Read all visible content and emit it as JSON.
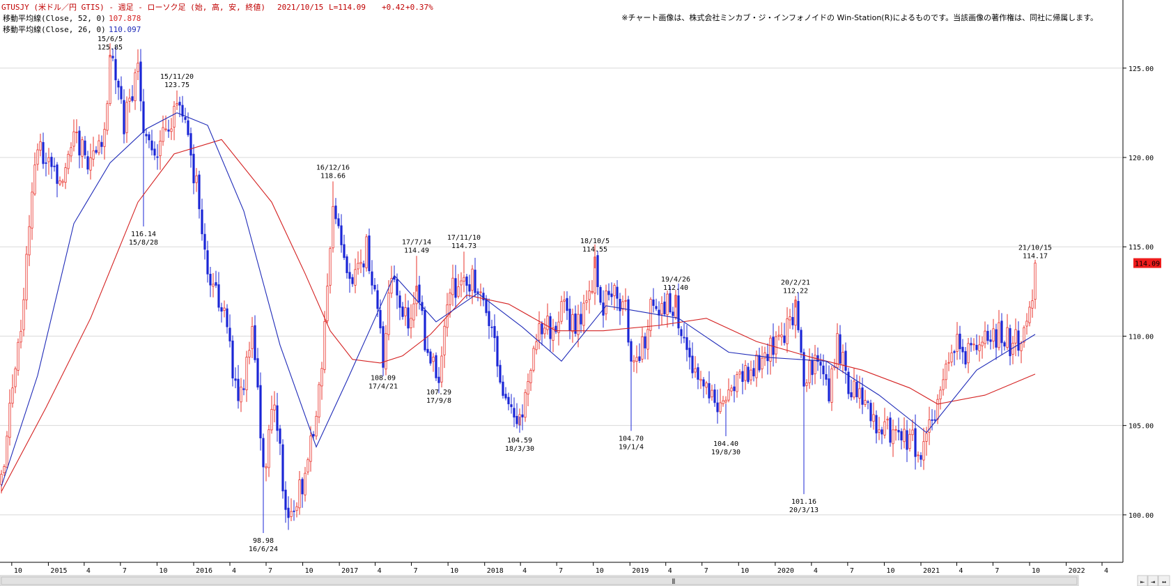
{
  "header": {
    "symbol_line": "GTUSJY (米ドル／円 GTIS) - 週足 - ローソク足 (始, 高, 安, 終値)",
    "date": "2021/10/15",
    "last": "L=114.09",
    "change": "+0.42",
    "change_pct": "+0.37%",
    "ma52_label": "移動平均線(Close, 52, 0)",
    "ma52_value": "107.878",
    "ma26_label": "移動平均線(Close, 26, 0)",
    "ma26_value": "110.097",
    "notice": "※チャート画像は、株式会社ミンカブ・ジ・インフォノイドの Win-Station(R)によるものです。当該画像の著作権は、同社に帰属します。"
  },
  "colors": {
    "up": "#e8302a",
    "down": "#1a26d6",
    "ma52": "#d42020",
    "ma26": "#1e2ab8",
    "header_text": "#c00000",
    "price_tag_bg": "#ee1c1c",
    "grid": "#d8d8d8"
  },
  "chart_data": {
    "type": "candlestick",
    "title": "GTUSJY (米ドル／円 GTIS) - 週足 - ローソク足 (始, 高, 安, 終値)",
    "x_start": "2014-09-05",
    "x_end": "2022-04-29",
    "ylim": [
      97.5,
      128.5
    ],
    "yticks": [
      100,
      105,
      110,
      115,
      120,
      125
    ],
    "ytick_labels": [
      "100.00",
      "105.00",
      "110.00",
      "115.00",
      "120.00",
      "125.00"
    ],
    "xticks": [
      {
        "label": "10",
        "date": "2014-10-01"
      },
      {
        "label": "2015",
        "date": "2015-01-01"
      },
      {
        "label": "4",
        "date": "2015-04-01"
      },
      {
        "label": "7",
        "date": "2015-07-01"
      },
      {
        "label": "10",
        "date": "2015-10-01"
      },
      {
        "label": "2016",
        "date": "2016-01-01"
      },
      {
        "label": "4",
        "date": "2016-04-01"
      },
      {
        "label": "7",
        "date": "2016-07-01"
      },
      {
        "label": "10",
        "date": "2016-10-01"
      },
      {
        "label": "2017",
        "date": "2017-01-01"
      },
      {
        "label": "4",
        "date": "2017-04-01"
      },
      {
        "label": "7",
        "date": "2017-07-01"
      },
      {
        "label": "10",
        "date": "2017-10-01"
      },
      {
        "label": "2018",
        "date": "2018-01-01"
      },
      {
        "label": "4",
        "date": "2018-04-01"
      },
      {
        "label": "7",
        "date": "2018-07-01"
      },
      {
        "label": "10",
        "date": "2018-10-01"
      },
      {
        "label": "2019",
        "date": "2019-01-01"
      },
      {
        "label": "4",
        "date": "2019-04-01"
      },
      {
        "label": "7",
        "date": "2019-07-01"
      },
      {
        "label": "10",
        "date": "2019-10-01"
      },
      {
        "label": "2020",
        "date": "2020-01-01"
      },
      {
        "label": "4",
        "date": "2020-04-01"
      },
      {
        "label": "7",
        "date": "2020-07-01"
      },
      {
        "label": "10",
        "date": "2020-10-01"
      },
      {
        "label": "2021",
        "date": "2021-01-01"
      },
      {
        "label": "4",
        "date": "2021-04-01"
      },
      {
        "label": "7",
        "date": "2021-07-01"
      },
      {
        "label": "10",
        "date": "2021-10-01"
      },
      {
        "label": "2022",
        "date": "2022-01-01"
      },
      {
        "label": "4",
        "date": "2022-04-01"
      }
    ],
    "price_path": [
      {
        "date": "2014-09-05",
        "close": 102.0
      },
      {
        "date": "2014-10-10",
        "close": 107.8
      },
      {
        "date": "2014-10-31",
        "close": 112.5
      },
      {
        "date": "2014-12-05",
        "close": 121.0
      },
      {
        "date": "2015-01-09",
        "close": 119.0
      },
      {
        "date": "2015-02-06",
        "close": 118.0
      },
      {
        "date": "2015-03-06",
        "close": 120.8
      },
      {
        "date": "2015-04-10",
        "close": 120.0
      },
      {
        "date": "2015-05-22",
        "close": 121.5
      },
      {
        "date": "2015-06-05",
        "close": 125.6
      },
      {
        "date": "2015-07-10",
        "close": 122.0
      },
      {
        "date": "2015-08-14",
        "close": 124.5
      },
      {
        "date": "2015-08-28",
        "close": 121.2
      },
      {
        "date": "2015-09-25",
        "close": 120.5
      },
      {
        "date": "2015-10-23",
        "close": 121.5
      },
      {
        "date": "2015-11-20",
        "close": 123.0
      },
      {
        "date": "2015-12-25",
        "close": 120.3
      },
      {
        "date": "2016-01-15",
        "close": 117.5
      },
      {
        "date": "2016-02-12",
        "close": 113.2
      },
      {
        "date": "2016-03-18",
        "close": 111.5
      },
      {
        "date": "2016-04-08",
        "close": 108.2
      },
      {
        "date": "2016-04-29",
        "close": 106.5
      },
      {
        "date": "2016-05-27",
        "close": 110.5
      },
      {
        "date": "2016-06-24",
        "close": 102.5
      },
      {
        "date": "2016-07-22",
        "close": 106.0
      },
      {
        "date": "2016-08-19",
        "close": 100.5
      },
      {
        "date": "2016-09-30",
        "close": 101.3
      },
      {
        "date": "2016-10-21",
        "close": 103.8
      },
      {
        "date": "2016-11-11",
        "close": 106.7
      },
      {
        "date": "2016-12-16",
        "close": 117.9
      },
      {
        "date": "2017-01-13",
        "close": 114.5
      },
      {
        "date": "2017-02-10",
        "close": 113.2
      },
      {
        "date": "2017-03-10",
        "close": 114.8
      },
      {
        "date": "2017-04-21",
        "close": 109.0
      },
      {
        "date": "2017-05-12",
        "close": 113.3
      },
      {
        "date": "2017-06-16",
        "close": 110.8
      },
      {
        "date": "2017-07-14",
        "close": 112.5
      },
      {
        "date": "2017-08-11",
        "close": 109.2
      },
      {
        "date": "2017-09-08",
        "close": 107.8
      },
      {
        "date": "2017-10-06",
        "close": 112.6
      },
      {
        "date": "2017-11-10",
        "close": 113.5
      },
      {
        "date": "2017-12-15",
        "close": 112.6
      },
      {
        "date": "2018-01-12",
        "close": 111.0
      },
      {
        "date": "2018-02-16",
        "close": 106.3
      },
      {
        "date": "2018-03-23",
        "close": 104.8
      },
      {
        "date": "2018-04-20",
        "close": 107.6
      },
      {
        "date": "2018-05-18",
        "close": 110.8
      },
      {
        "date": "2018-06-15",
        "close": 110.6
      },
      {
        "date": "2018-07-20",
        "close": 111.4
      },
      {
        "date": "2018-08-17",
        "close": 110.5
      },
      {
        "date": "2018-09-21",
        "close": 112.6
      },
      {
        "date": "2018-10-05",
        "close": 113.8
      },
      {
        "date": "2018-10-26",
        "close": 111.9
      },
      {
        "date": "2018-11-16",
        "close": 112.8
      },
      {
        "date": "2018-12-21",
        "close": 111.2
      },
      {
        "date": "2019-01-04",
        "close": 108.5
      },
      {
        "date": "2019-02-01",
        "close": 109.5
      },
      {
        "date": "2019-03-01",
        "close": 111.9
      },
      {
        "date": "2019-04-26",
        "close": 111.6
      },
      {
        "date": "2019-05-24",
        "close": 109.3
      },
      {
        "date": "2019-06-21",
        "close": 107.3
      },
      {
        "date": "2019-08-02",
        "close": 106.6
      },
      {
        "date": "2019-08-30",
        "close": 106.2
      },
      {
        "date": "2019-09-27",
        "close": 107.9
      },
      {
        "date": "2019-11-01",
        "close": 108.3
      },
      {
        "date": "2019-12-13",
        "close": 109.4
      },
      {
        "date": "2020-01-10",
        "close": 109.5
      },
      {
        "date": "2020-02-21",
        "close": 111.6
      },
      {
        "date": "2020-03-13",
        "close": 107.8
      },
      {
        "date": "2020-04-10",
        "close": 108.4
      },
      {
        "date": "2020-05-15",
        "close": 107.1
      },
      {
        "date": "2020-06-05",
        "close": 109.6
      },
      {
        "date": "2020-07-03",
        "close": 107.5
      },
      {
        "date": "2020-08-14",
        "close": 106.6
      },
      {
        "date": "2020-09-18",
        "close": 104.6
      },
      {
        "date": "2020-10-30",
        "close": 104.7
      },
      {
        "date": "2020-12-11",
        "close": 104.0
      },
      {
        "date": "2021-01-01",
        "close": 103.3
      },
      {
        "date": "2021-02-05",
        "close": 105.4
      },
      {
        "date": "2021-03-26",
        "close": 109.6
      },
      {
        "date": "2021-04-16",
        "close": 108.8
      },
      {
        "date": "2021-05-14",
        "close": 109.3
      },
      {
        "date": "2021-06-18",
        "close": 110.2
      },
      {
        "date": "2021-07-09",
        "close": 110.1
      },
      {
        "date": "2021-08-13",
        "close": 109.6
      },
      {
        "date": "2021-09-17",
        "close": 109.9
      },
      {
        "date": "2021-10-01",
        "close": 111.0
      },
      {
        "date": "2021-10-15",
        "close": 114.09
      }
    ],
    "ma52_path": [
      {
        "date": "2014-09-05",
        "value": 101.3
      },
      {
        "date": "2014-12-26",
        "value": 106.0
      },
      {
        "date": "2015-04-17",
        "value": 111.0
      },
      {
        "date": "2015-08-14",
        "value": 117.5
      },
      {
        "date": "2015-11-13",
        "value": 120.2
      },
      {
        "date": "2016-03-11",
        "value": 121.0
      },
      {
        "date": "2016-07-15",
        "value": 117.5
      },
      {
        "date": "2016-10-07",
        "value": 113.5
      },
      {
        "date": "2016-12-09",
        "value": 110.3
      },
      {
        "date": "2017-02-03",
        "value": 108.7
      },
      {
        "date": "2017-04-14",
        "value": 108.5
      },
      {
        "date": "2017-06-09",
        "value": 108.9
      },
      {
        "date": "2017-08-18",
        "value": 110.1
      },
      {
        "date": "2017-11-17",
        "value": 112.3
      },
      {
        "date": "2018-03-02",
        "value": 111.8
      },
      {
        "date": "2018-06-29",
        "value": 110.3
      },
      {
        "date": "2018-10-26",
        "value": 110.3
      },
      {
        "date": "2019-03-15",
        "value": 110.6
      },
      {
        "date": "2019-07-12",
        "value": 111.0
      },
      {
        "date": "2019-11-15",
        "value": 109.7
      },
      {
        "date": "2020-04-03",
        "value": 108.8
      },
      {
        "date": "2020-08-07",
        "value": 108.1
      },
      {
        "date": "2020-12-04",
        "value": 107.1
      },
      {
        "date": "2021-02-12",
        "value": 106.2
      },
      {
        "date": "2021-06-11",
        "value": 106.7
      },
      {
        "date": "2021-10-15",
        "value": 107.878
      }
    ],
    "ma26_path": [
      {
        "date": "2014-09-05",
        "value": 101.6
      },
      {
        "date": "2014-12-05",
        "value": 107.8
      },
      {
        "date": "2015-03-06",
        "value": 116.3
      },
      {
        "date": "2015-06-05",
        "value": 119.7
      },
      {
        "date": "2015-09-04",
        "value": 121.6
      },
      {
        "date": "2015-11-20",
        "value": 122.5
      },
      {
        "date": "2016-02-05",
        "value": 121.8
      },
      {
        "date": "2016-05-06",
        "value": 117.0
      },
      {
        "date": "2016-08-05",
        "value": 109.5
      },
      {
        "date": "2016-11-04",
        "value": 103.8
      },
      {
        "date": "2017-01-20",
        "value": 107.5
      },
      {
        "date": "2017-05-19",
        "value": 113.4
      },
      {
        "date": "2017-09-01",
        "value": 110.8
      },
      {
        "date": "2017-12-15",
        "value": 112.4
      },
      {
        "date": "2018-04-06",
        "value": 110.5
      },
      {
        "date": "2018-07-13",
        "value": 108.6
      },
      {
        "date": "2018-11-02",
        "value": 111.7
      },
      {
        "date": "2019-02-15",
        "value": 111.3
      },
      {
        "date": "2019-05-03",
        "value": 111.0
      },
      {
        "date": "2019-09-06",
        "value": 109.1
      },
      {
        "date": "2019-12-20",
        "value": 108.8
      },
      {
        "date": "2020-05-08",
        "value": 108.6
      },
      {
        "date": "2020-09-18",
        "value": 106.7
      },
      {
        "date": "2021-01-15",
        "value": 104.6
      },
      {
        "date": "2021-05-21",
        "value": 108.1
      },
      {
        "date": "2021-10-15",
        "value": 110.097
      }
    ],
    "annotations": [
      {
        "date": "2015-06-05",
        "value": 125.85,
        "label_date": "15/6/5",
        "label_value": "125.85",
        "pos": "above"
      },
      {
        "date": "2015-08-28",
        "value": 116.14,
        "label_date": "15/8/28",
        "label_value": "116.14",
        "pos": "below"
      },
      {
        "date": "2015-11-20",
        "value": 123.75,
        "label_date": "15/11/20",
        "label_value": "123.75",
        "pos": "above"
      },
      {
        "date": "2016-06-24",
        "value": 98.98,
        "label_date": "16/6/24",
        "label_value": "98.98",
        "pos": "below"
      },
      {
        "date": "2016-12-16",
        "value": 118.66,
        "label_date": "16/12/16",
        "label_value": "118.66",
        "pos": "above"
      },
      {
        "date": "2017-04-21",
        "value": 108.09,
        "label_date": "17/4/21",
        "label_value": "108.09",
        "pos": "below"
      },
      {
        "date": "2017-07-14",
        "value": 114.49,
        "label_date": "17/7/14",
        "label_value": "114.49",
        "pos": "above"
      },
      {
        "date": "2017-09-08",
        "value": 107.29,
        "label_date": "17/9/8",
        "label_value": "107.29",
        "pos": "below"
      },
      {
        "date": "2017-11-10",
        "value": 114.73,
        "label_date": "17/11/10",
        "label_value": "114.73",
        "pos": "above"
      },
      {
        "date": "2018-03-30",
        "value": 104.59,
        "label_date": "18/3/30",
        "label_value": "104.59",
        "pos": "below"
      },
      {
        "date": "2018-10-05",
        "value": 114.55,
        "label_date": "18/10/5",
        "label_value": "114.55",
        "pos": "above"
      },
      {
        "date": "2019-01-04",
        "value": 104.7,
        "label_date": "19/1/4",
        "label_value": "104.70",
        "pos": "below"
      },
      {
        "date": "2019-04-26",
        "value": 112.4,
        "label_date": "19/4/26",
        "label_value": "112.40",
        "pos": "above"
      },
      {
        "date": "2019-08-30",
        "value": 104.4,
        "label_date": "19/8/30",
        "label_value": "104.40",
        "pos": "below"
      },
      {
        "date": "2020-02-21",
        "value": 112.22,
        "label_date": "20/2/21",
        "label_value": "112.22",
        "pos": "above"
      },
      {
        "date": "2020-03-13",
        "value": 101.16,
        "label_date": "20/3/13",
        "label_value": "101.16",
        "pos": "below"
      },
      {
        "date": "2021-10-15",
        "value": 114.17,
        "label_date": "21/10/15",
        "label_value": "114.17",
        "pos": "above"
      }
    ],
    "last_price_tag": "114.09"
  },
  "controls": {
    "scroll_grip": "⦀",
    "nav_left": "⇤",
    "nav_right": "⇥",
    "zoom": "↔"
  }
}
